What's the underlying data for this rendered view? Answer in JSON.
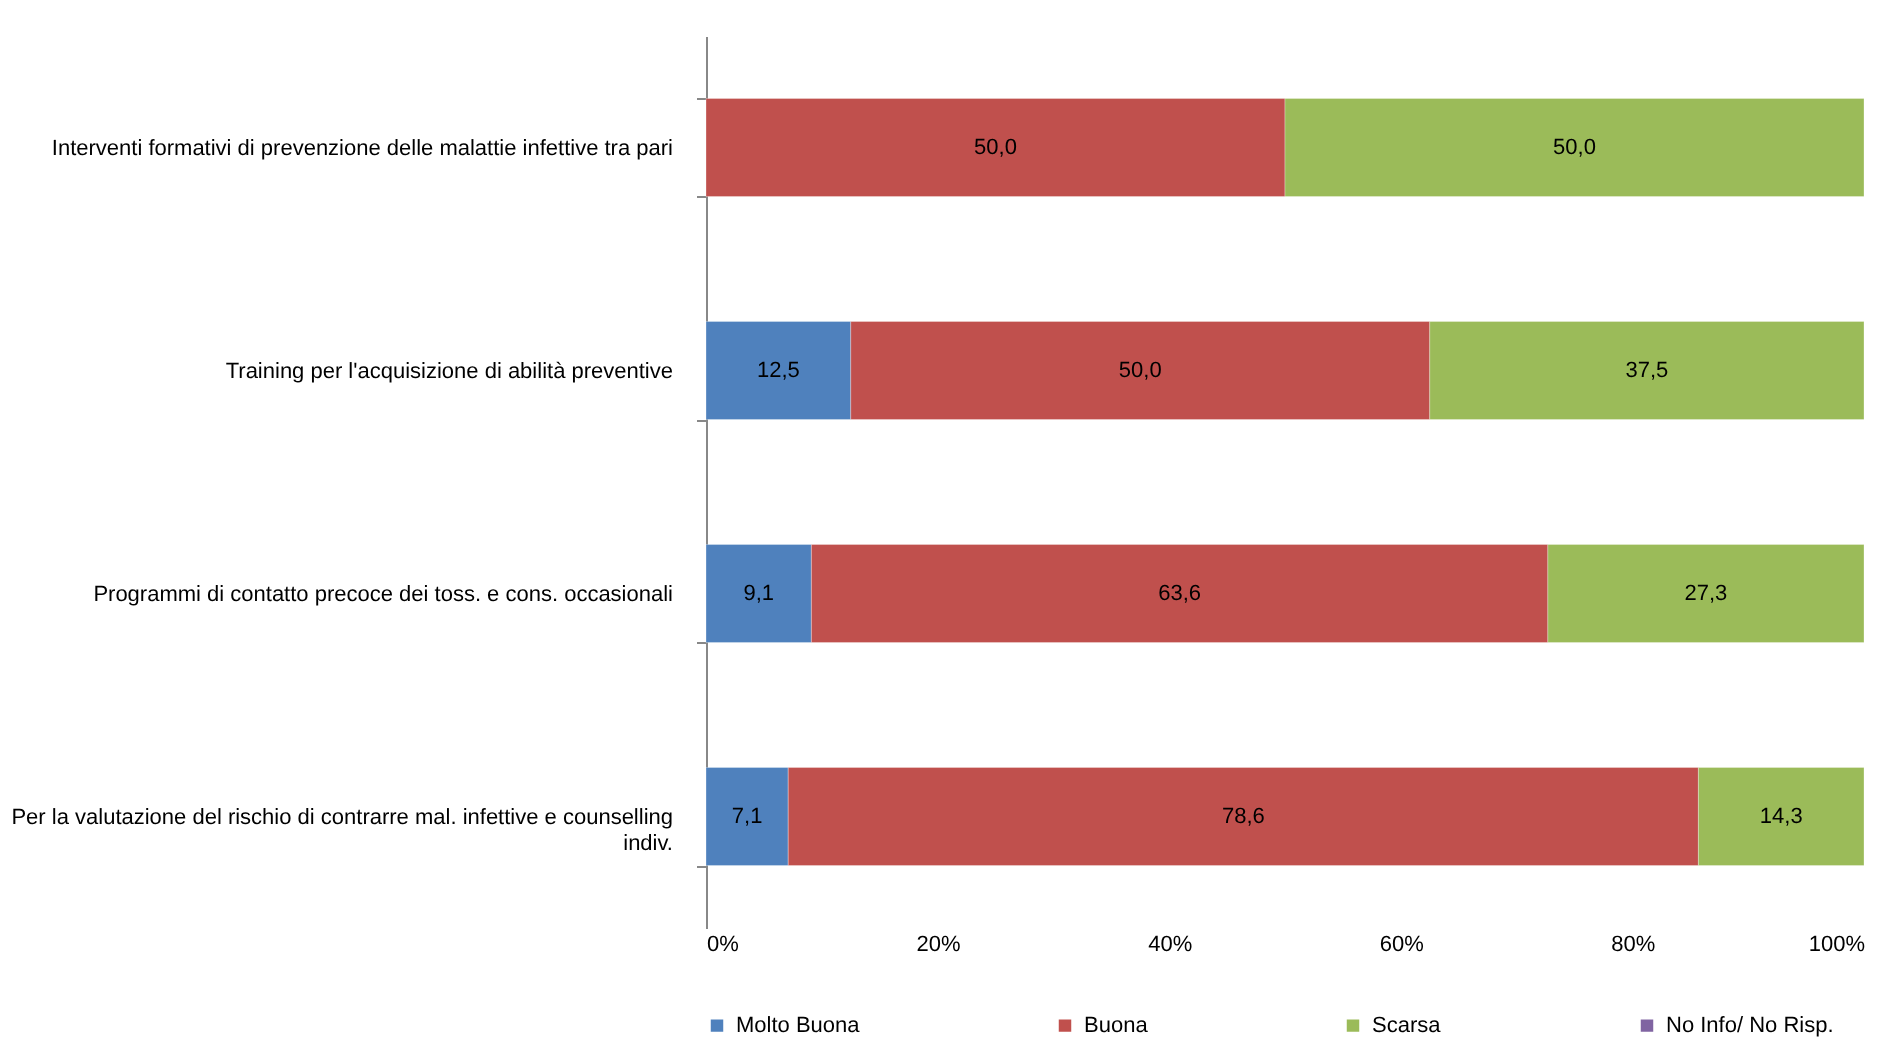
{
  "chart_data": {
    "type": "bar",
    "orientation": "horizontal",
    "stacked": true,
    "categories": [
      "Interventi formativi di prevenzione delle malattie infettive tra pari",
      "Training per l'acquisizione di abilità preventive",
      "Programmi di contatto precoce dei toss. e cons. occasionali",
      "Per la valutazione del rischio di contrarre mal. infettive e counselling indiv."
    ],
    "series": [
      {
        "name": "Molto Buona",
        "color": "#4f81bd",
        "values": [
          null,
          12.5,
          9.1,
          7.1
        ],
        "value_labels": [
          null,
          "12,5",
          "9,1",
          "7,1"
        ]
      },
      {
        "name": "Buona",
        "color": "#c0504d",
        "values": [
          50.0,
          50.0,
          63.6,
          78.6
        ],
        "value_labels": [
          "50,0",
          "50,0",
          "63,6",
          "78,6"
        ]
      },
      {
        "name": "Scarsa",
        "color": "#9bbb59",
        "values": [
          50.0,
          37.5,
          27.3,
          14.3
        ],
        "value_labels": [
          "50,0",
          "37,5",
          "27,3",
          "14,3"
        ]
      },
      {
        "name": "No Info/ No Risp.",
        "color": "#8064a2",
        "values": [
          null,
          null,
          null,
          null
        ],
        "value_labels": [
          null,
          null,
          null,
          null
        ]
      }
    ],
    "xlim": [
      0,
      100
    ],
    "xticks": [
      {
        "value": 0,
        "label": "0%"
      },
      {
        "value": 20,
        "label": "20%"
      },
      {
        "value": 40,
        "label": "40%"
      },
      {
        "value": 60,
        "label": "60%"
      },
      {
        "value": 80,
        "label": "80%"
      },
      {
        "value": 100,
        "label": "100%"
      }
    ],
    "legend": "bottom",
    "grid": false
  }
}
